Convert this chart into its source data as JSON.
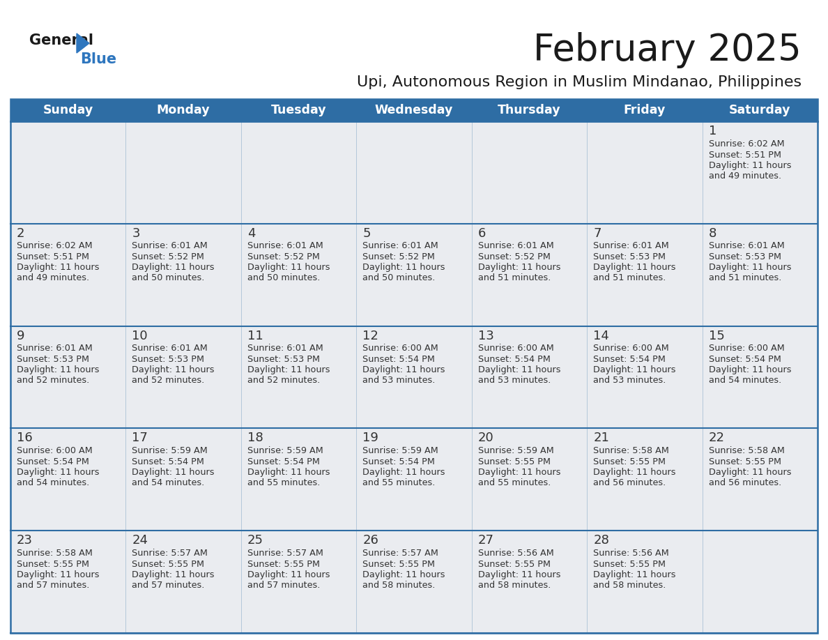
{
  "title": "February 2025",
  "subtitle": "Upi, Autonomous Region in Muslim Mindanao, Philippines",
  "days_of_week": [
    "Sunday",
    "Monday",
    "Tuesday",
    "Wednesday",
    "Thursday",
    "Friday",
    "Saturday"
  ],
  "header_bg": "#2E6DA4",
  "header_text": "#FFFFFF",
  "cell_bg": "#EAECF0",
  "cell_bg_white": "#FFFFFF",
  "border_color": "#2E6DA4",
  "text_color": "#333333",
  "day_num_color": "#333333",
  "calendar": [
    [
      null,
      null,
      null,
      null,
      null,
      null,
      {
        "day": 1,
        "sunrise": "6:02 AM",
        "sunset": "5:51 PM",
        "daylight": "11 hours and 49 minutes."
      }
    ],
    [
      {
        "day": 2,
        "sunrise": "6:02 AM",
        "sunset": "5:51 PM",
        "daylight": "11 hours and 49 minutes."
      },
      {
        "day": 3,
        "sunrise": "6:01 AM",
        "sunset": "5:52 PM",
        "daylight": "11 hours and 50 minutes."
      },
      {
        "day": 4,
        "sunrise": "6:01 AM",
        "sunset": "5:52 PM",
        "daylight": "11 hours and 50 minutes."
      },
      {
        "day": 5,
        "sunrise": "6:01 AM",
        "sunset": "5:52 PM",
        "daylight": "11 hours and 50 minutes."
      },
      {
        "day": 6,
        "sunrise": "6:01 AM",
        "sunset": "5:52 PM",
        "daylight": "11 hours and 51 minutes."
      },
      {
        "day": 7,
        "sunrise": "6:01 AM",
        "sunset": "5:53 PM",
        "daylight": "11 hours and 51 minutes."
      },
      {
        "day": 8,
        "sunrise": "6:01 AM",
        "sunset": "5:53 PM",
        "daylight": "11 hours and 51 minutes."
      }
    ],
    [
      {
        "day": 9,
        "sunrise": "6:01 AM",
        "sunset": "5:53 PM",
        "daylight": "11 hours and 52 minutes."
      },
      {
        "day": 10,
        "sunrise": "6:01 AM",
        "sunset": "5:53 PM",
        "daylight": "11 hours and 52 minutes."
      },
      {
        "day": 11,
        "sunrise": "6:01 AM",
        "sunset": "5:53 PM",
        "daylight": "11 hours and 52 minutes."
      },
      {
        "day": 12,
        "sunrise": "6:00 AM",
        "sunset": "5:54 PM",
        "daylight": "11 hours and 53 minutes."
      },
      {
        "day": 13,
        "sunrise": "6:00 AM",
        "sunset": "5:54 PM",
        "daylight": "11 hours and 53 minutes."
      },
      {
        "day": 14,
        "sunrise": "6:00 AM",
        "sunset": "5:54 PM",
        "daylight": "11 hours and 53 minutes."
      },
      {
        "day": 15,
        "sunrise": "6:00 AM",
        "sunset": "5:54 PM",
        "daylight": "11 hours and 54 minutes."
      }
    ],
    [
      {
        "day": 16,
        "sunrise": "6:00 AM",
        "sunset": "5:54 PM",
        "daylight": "11 hours and 54 minutes."
      },
      {
        "day": 17,
        "sunrise": "5:59 AM",
        "sunset": "5:54 PM",
        "daylight": "11 hours and 54 minutes."
      },
      {
        "day": 18,
        "sunrise": "5:59 AM",
        "sunset": "5:54 PM",
        "daylight": "11 hours and 55 minutes."
      },
      {
        "day": 19,
        "sunrise": "5:59 AM",
        "sunset": "5:54 PM",
        "daylight": "11 hours and 55 minutes."
      },
      {
        "day": 20,
        "sunrise": "5:59 AM",
        "sunset": "5:55 PM",
        "daylight": "11 hours and 55 minutes."
      },
      {
        "day": 21,
        "sunrise": "5:58 AM",
        "sunset": "5:55 PM",
        "daylight": "11 hours and 56 minutes."
      },
      {
        "day": 22,
        "sunrise": "5:58 AM",
        "sunset": "5:55 PM",
        "daylight": "11 hours and 56 minutes."
      }
    ],
    [
      {
        "day": 23,
        "sunrise": "5:58 AM",
        "sunset": "5:55 PM",
        "daylight": "11 hours and 57 minutes."
      },
      {
        "day": 24,
        "sunrise": "5:57 AM",
        "sunset": "5:55 PM",
        "daylight": "11 hours and 57 minutes."
      },
      {
        "day": 25,
        "sunrise": "5:57 AM",
        "sunset": "5:55 PM",
        "daylight": "11 hours and 57 minutes."
      },
      {
        "day": 26,
        "sunrise": "5:57 AM",
        "sunset": "5:55 PM",
        "daylight": "11 hours and 58 minutes."
      },
      {
        "day": 27,
        "sunrise": "5:56 AM",
        "sunset": "5:55 PM",
        "daylight": "11 hours and 58 minutes."
      },
      {
        "day": 28,
        "sunrise": "5:56 AM",
        "sunset": "5:55 PM",
        "daylight": "11 hours and 58 minutes."
      },
      null
    ]
  ]
}
